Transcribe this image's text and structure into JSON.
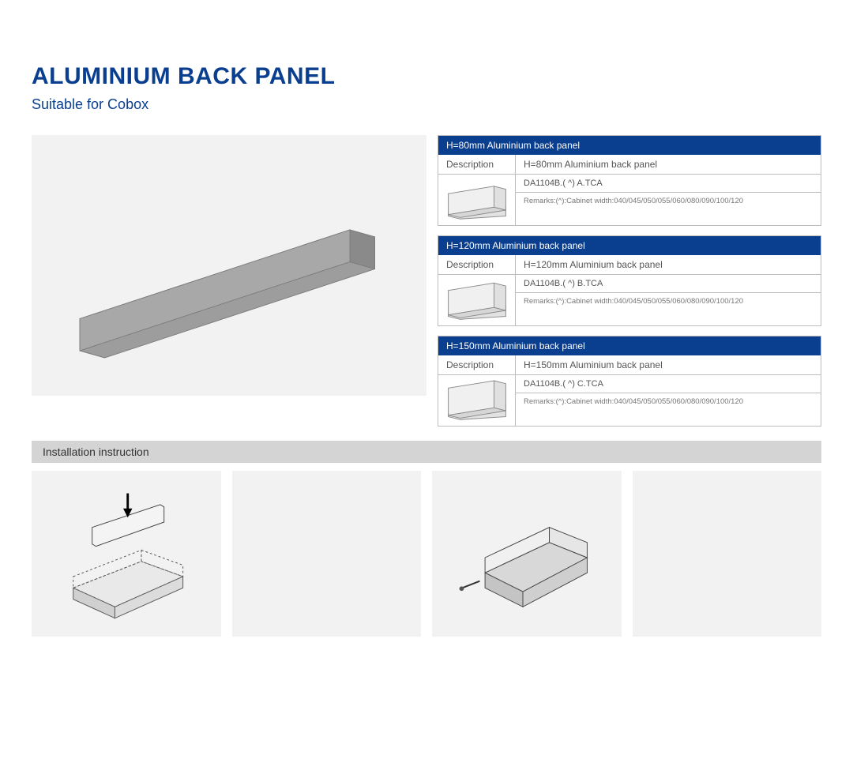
{
  "title": "ALUMINIUM BACK PANEL",
  "subtitle": "Suitable for Cobox",
  "colors": {
    "brand": "#0a3e8f",
    "panel_bg": "#f2f2f2",
    "border": "#bdbdbd",
    "install_bar": "#d4d4d4",
    "panel_fill": "#9d9d9d",
    "panel_edge": "#7a7a7a",
    "text_muted": "#555555",
    "remarks_text": "#777777"
  },
  "specs": [
    {
      "header": "H=80mm Aluminium back panel",
      "label_desc": "Description",
      "desc": "H=80mm Aluminium back panel",
      "code": "DA1104B.( ^) A.TCA",
      "remarks": "Remarks:(^):Cabinet width:040/045/050/055/060/080/090/100/120",
      "panel_height_ratio": 0.35
    },
    {
      "header": "H=120mm Aluminium back panel",
      "label_desc": "Description",
      "desc": "H=120mm Aluminium back panel",
      "code": "DA1104B.( ^) B.TCA",
      "remarks": "Remarks:(^):Cabinet width:040/045/050/055/060/080/090/100/120",
      "panel_height_ratio": 0.55
    },
    {
      "header": "H=150mm Aluminium back panel",
      "label_desc": "Description",
      "desc": "H=150mm Aluminium back panel",
      "code": "DA1104B.( ^) C.TCA",
      "remarks": "Remarks:(^):Cabinet width:040/045/050/055/060/080/090/100/120",
      "panel_height_ratio": 0.7
    }
  ],
  "install_label": "Installation instruction",
  "step_count": 4
}
